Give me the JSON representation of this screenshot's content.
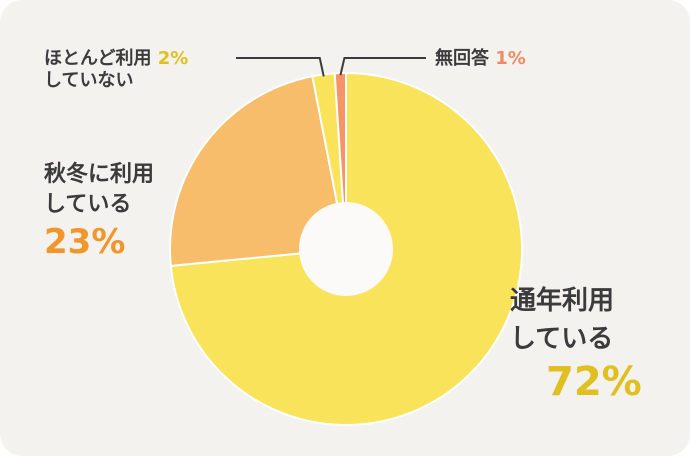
{
  "chart_data": {
    "type": "pie",
    "style": "donut",
    "slices": [
      {
        "label_lines": [
          "通年利用",
          "している"
        ],
        "value": 72,
        "value_label": "72%",
        "color": "#f9e35b",
        "pct_color": "#e0c020"
      },
      {
        "label_lines": [
          "秋冬に利用",
          "している"
        ],
        "value": 23,
        "value_label": "23%",
        "color": "#f8bd6b",
        "pct_color": "#f0962a"
      },
      {
        "label_lines": [
          "ほとんど利用",
          "していない"
        ],
        "value": 2,
        "value_label": "2%",
        "color": "#f9e35b",
        "pct_color": "#e0c020"
      },
      {
        "label_lines": [
          "無回答"
        ],
        "value": 1,
        "value_label": "1%",
        "color": "#f69468",
        "pct_color": "#f08a60"
      }
    ]
  },
  "colors": {
    "card_background": "#f3f2ef",
    "slice_border": "#ffffff",
    "hole": "#fbfaf8",
    "leader_line": "#3b3b3b"
  }
}
